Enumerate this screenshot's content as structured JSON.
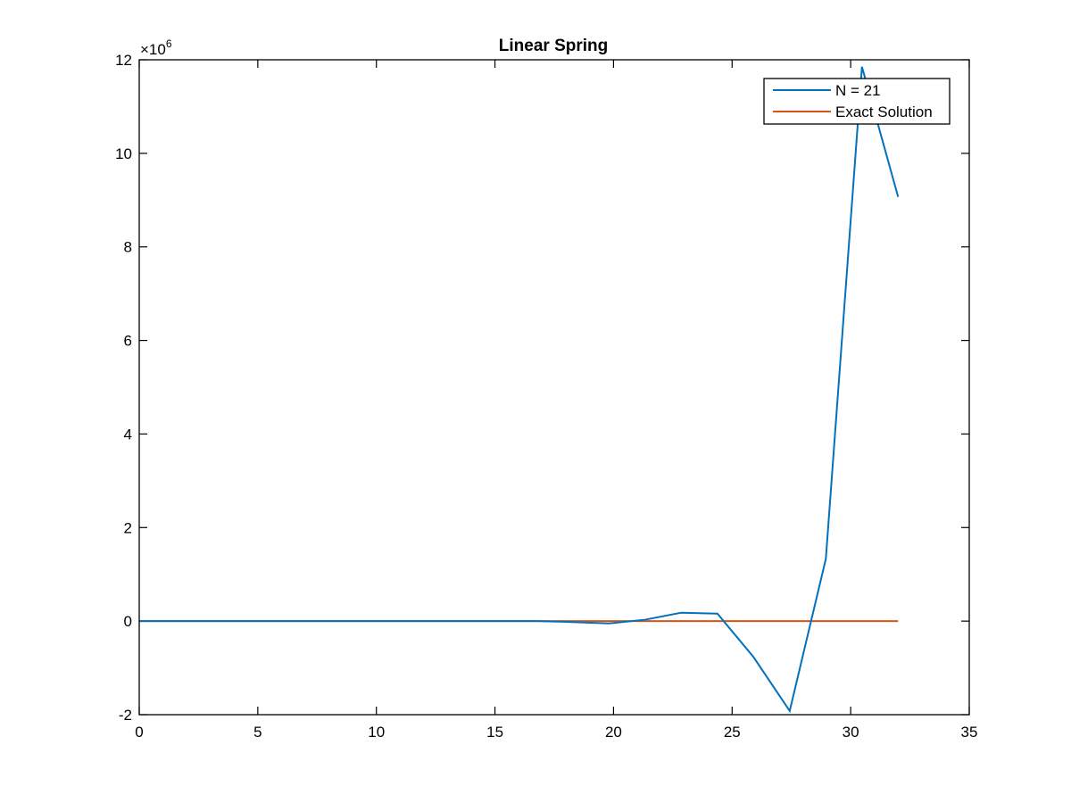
{
  "chart_data": {
    "type": "line",
    "title": "Linear Spring",
    "xlabel": "",
    "ylabel": "",
    "xlim": [
      0,
      35
    ],
    "ylim": [
      -2,
      12
    ],
    "x_ticks": [
      0,
      5,
      10,
      15,
      20,
      25,
      30,
      35
    ],
    "y_ticks": [
      -2,
      0,
      2,
      4,
      6,
      8,
      10,
      12
    ],
    "y_exponent_label": "×10",
    "y_exponent_power": "6",
    "y_scale": 1000000,
    "grid": false,
    "legend_position": "top-right",
    "series": [
      {
        "name": "N = 21",
        "color": "#0072BD",
        "x": [
          0,
          1.524,
          3.048,
          4.571,
          6.095,
          7.619,
          9.143,
          10.667,
          12.19,
          13.714,
          15.238,
          16.762,
          18.286,
          19.81,
          21.333,
          22.857,
          24.381,
          25.905,
          27.429,
          28.952,
          30.476,
          32.0
        ],
        "y": [
          0,
          0,
          0,
          0,
          0,
          0,
          0,
          0,
          0,
          0,
          0,
          0,
          -0.02,
          -0.05,
          0.03,
          0.18,
          0.16,
          -0.77,
          -1.92,
          1.33,
          11.85,
          9.07
        ]
      },
      {
        "name": "Exact Solution",
        "color": "#D95319",
        "x": [
          0,
          32.0
        ],
        "y": [
          0,
          0
        ]
      }
    ]
  }
}
